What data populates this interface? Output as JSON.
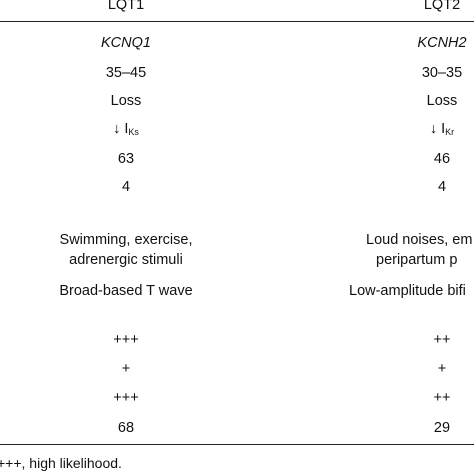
{
  "header": {
    "col1": "LQT1",
    "col2": "LQT2"
  },
  "rows": [
    {
      "c1": "KCNQ1",
      "c2": "KCNH2"
    },
    {
      "c1": "35–45",
      "c2": "30–35"
    },
    {
      "c1": "Loss",
      "c2": "Loss"
    },
    {
      "c1_arrow": "↓ I",
      "c1_sub": "Ks",
      "c2_arrow": "↓ I",
      "c2_sub": "Kr"
    },
    {
      "c1": "63",
      "c2": "46"
    },
    {
      "c1": "4",
      "c2": "4"
    },
    {
      "c1a": "Swimming, exercise,",
      "c1b": "adrenergic stimuli",
      "c2a": "Loud noises, em",
      "c2b": "peripartum p"
    },
    {
      "c1": "Broad-based T wave",
      "c2": "Low-amplitude bifi"
    },
    {
      "c1": "+++",
      "c2": "++"
    },
    {
      "c1": "+",
      "c2": "+"
    },
    {
      "c1": "+++",
      "c2": "++"
    },
    {
      "c1": "68",
      "c2": "29"
    }
  ],
  "footnote": "+++, high likelihood."
}
